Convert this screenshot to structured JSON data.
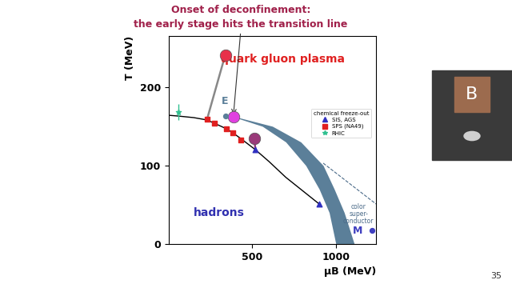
{
  "title_lines": [
    "Onset of deconfinement:",
    "the early stage hits the transition line"
  ],
  "page_number": "35",
  "participant": "B",
  "chart_data": {
    "type": "scatter",
    "xlabel": "μB (MeV)",
    "ylabel": "T (MeV)",
    "xlim": [
      0,
      1240
    ],
    "ylim": [
      0,
      265
    ],
    "xticks": [
      500,
      1000
    ],
    "yticks": [
      0,
      100,
      200
    ],
    "grid": false,
    "legend": "center right",
    "legend_title": "chemical freeze-out",
    "series": [
      {
        "name": "SIS, AGS",
        "color": "#3030c0",
        "marker": "triangle",
        "x": [
          519,
          900
        ],
        "y": [
          120,
          51
        ]
      },
      {
        "name": "SPS (NA49)",
        "color": "#e02020",
        "marker": "square",
        "x": [
          229,
          271,
          343,
          381,
          433
        ],
        "y": [
          159,
          154,
          147,
          142,
          133
        ]
      },
      {
        "name": "RHIC",
        "color": "#30c090",
        "marker": "star",
        "x": [
          57
        ],
        "y": [
          168
        ],
        "errors": [
          10
        ]
      }
    ],
    "freeze_out_curve": {
      "color": "#000000",
      "x": [
        0,
        57,
        150,
        229,
        271,
        343,
        381,
        433,
        519,
        600,
        700,
        800,
        900
      ],
      "y": [
        164,
        163,
        161,
        158,
        154,
        147,
        142,
        134,
        120,
        105,
        85,
        68,
        51
      ]
    },
    "transition_band": {
      "color": "#5b7f99",
      "y": [
        162,
        150,
        130,
        100,
        70,
        40,
        0
      ],
      "x_low": [
        386,
        560,
        700,
        820,
        900,
        960,
        1000
      ],
      "x_high": [
        400,
        620,
        790,
        924,
        990,
        1050,
        1110
      ]
    },
    "dashed_line": {
      "color": "#4a6a88",
      "line_style": "dashed",
      "x": [
        924,
        1240
      ],
      "y": [
        103,
        51
      ]
    },
    "connectors": [
      {
        "color": "#888888",
        "x": [
          338,
          229
        ],
        "y": [
          241,
          159
        ]
      },
      {
        "color": "#9a3a7a",
        "x": [
          510,
          519
        ],
        "y": [
          135,
          120
        ]
      }
    ],
    "highlight_points": [
      {
        "color": "#e8304a",
        "x": 338,
        "y": 241
      },
      {
        "color": "#e040e0",
        "x": 386,
        "y": 162
      },
      {
        "color": "#9a3a7a",
        "x": 510,
        "y": 135
      }
    ],
    "labeled_points": [
      {
        "label": "E",
        "color": "#5b7f99",
        "x": 338,
        "y": 163
      },
      {
        "label": "M",
        "color": "#4040c0",
        "x": 1214,
        "y": 17
      }
    ],
    "region_labels": [
      {
        "text": "quark gluon plasma",
        "color": "#e02020"
      },
      {
        "text": "hadrons",
        "color": "#3030b0"
      },
      {
        "text": "color\nsuper-\nconductor",
        "color": "#4a6a88"
      }
    ]
  }
}
